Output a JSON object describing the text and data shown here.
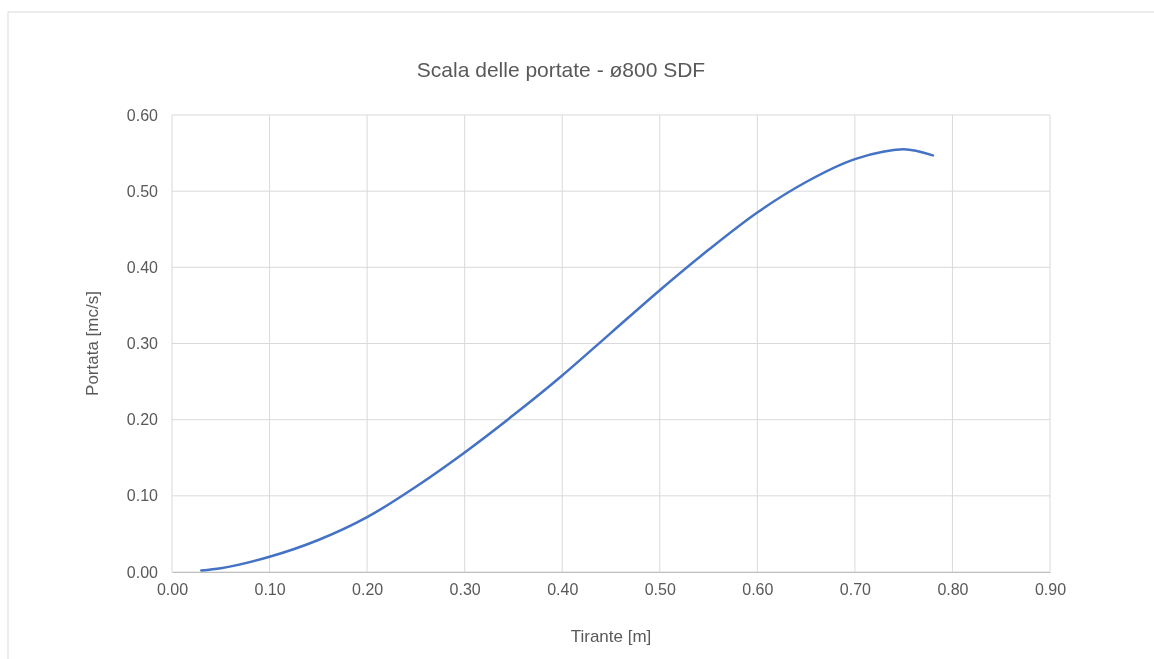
{
  "chart_data": {
    "type": "line",
    "title": "Scala delle portate - ø800 SDF",
    "xlabel": "Tirante [m]",
    "ylabel": "Portata [mc/s]",
    "x": [
      0.03,
      0.05,
      0.1,
      0.15,
      0.2,
      0.25,
      0.3,
      0.35,
      0.4,
      0.45,
      0.5,
      0.55,
      0.6,
      0.65,
      0.7,
      0.73,
      0.75,
      0.78
    ],
    "series": [
      {
        "color": "#4472c4",
        "values": [
          0.002,
          0.005,
          0.02,
          0.042,
          0.072,
          0.112,
          0.157,
          0.206,
          0.258,
          0.314,
          0.37,
          0.423,
          0.472,
          0.512,
          0.542,
          0.552,
          0.555,
          0.547
        ]
      }
    ],
    "xlim": [
      0,
      0.9
    ],
    "xticks": [
      {
        "value": 0,
        "label": "0.00"
      },
      {
        "value": 0.1,
        "label": "0.10"
      },
      {
        "value": 0.2,
        "label": "0.20"
      },
      {
        "value": 0.3,
        "label": "0.30"
      },
      {
        "value": 0.4,
        "label": "0.40"
      },
      {
        "value": 0.5,
        "label": "0.50"
      },
      {
        "value": 0.6,
        "label": "0.60"
      },
      {
        "value": 0.7,
        "label": "0.70"
      },
      {
        "value": 0.8,
        "label": "0.80"
      },
      {
        "value": 0.9,
        "label": "0.90"
      }
    ],
    "ylim": [
      0,
      0.6
    ],
    "yticks": [
      {
        "value": 0,
        "label": "0.00"
      },
      {
        "value": 0.1,
        "label": "0.10"
      },
      {
        "value": 0.2,
        "label": "0.20"
      },
      {
        "value": 0.3,
        "label": "0.30"
      },
      {
        "value": 0.4,
        "label": "0.40"
      },
      {
        "value": 0.5,
        "label": "0.50"
      },
      {
        "value": 0.6,
        "label": "0.60"
      }
    ],
    "grid": true,
    "marker": "none",
    "line_style": "solid"
  }
}
